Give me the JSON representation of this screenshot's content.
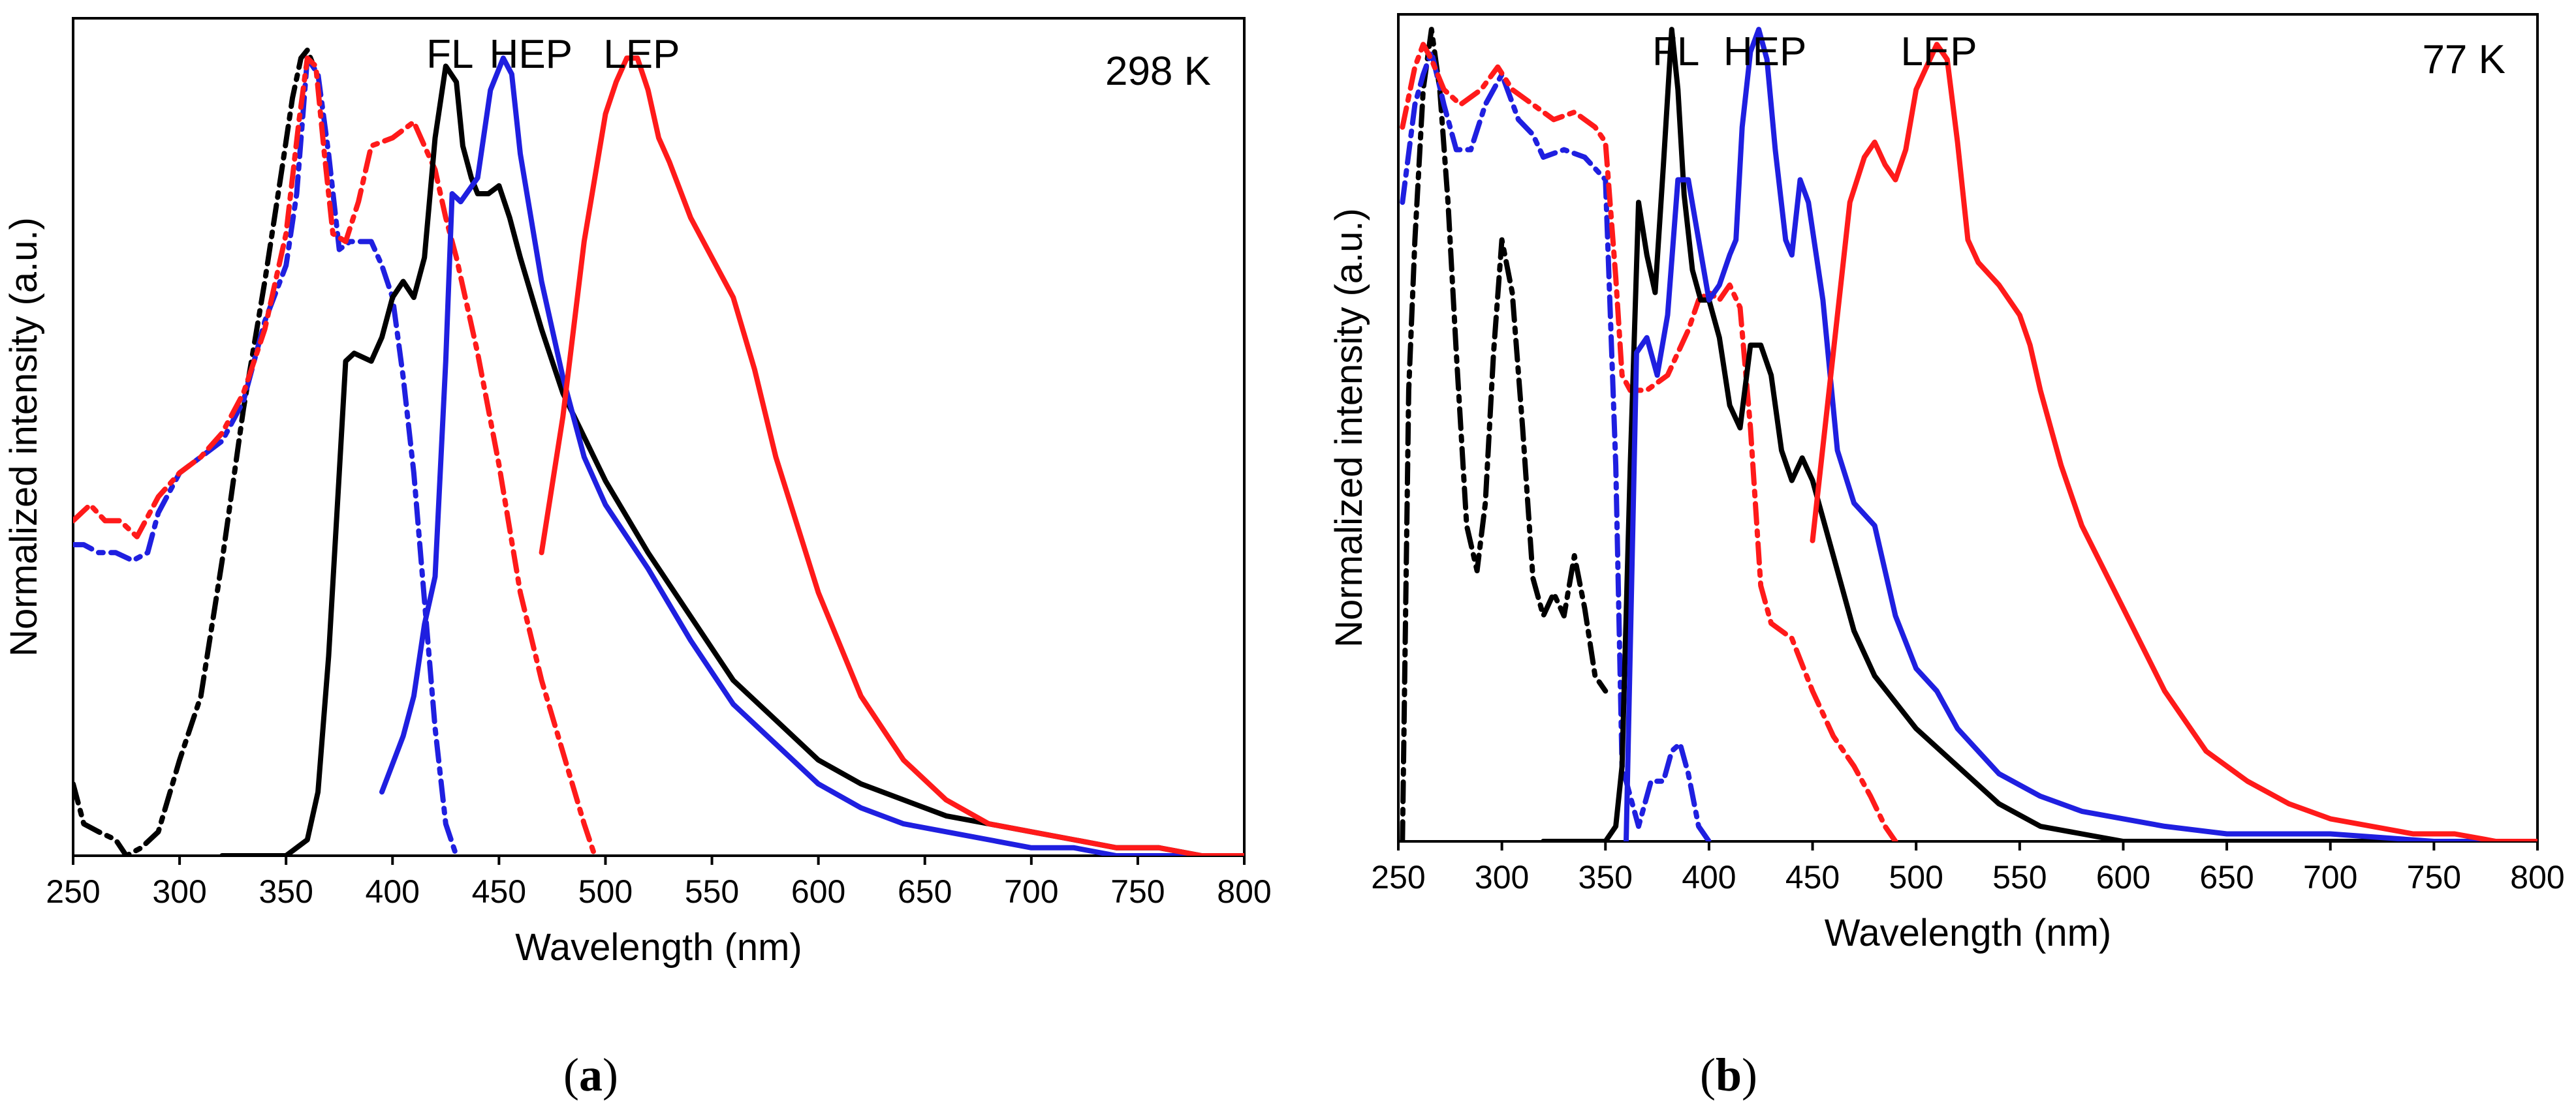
{
  "chart_data": [
    {
      "type": "line",
      "panel_label": "a",
      "temperature_label": "298 K",
      "xlabel": "Wavelength (nm)",
      "ylabel": "Normalized intensity (a.u.)",
      "xlim": [
        250,
        800
      ],
      "ylim": [
        0,
        1.05
      ],
      "xticks": [
        250,
        300,
        350,
        400,
        450,
        500,
        550,
        600,
        650,
        700,
        750,
        800
      ],
      "peak_labels": [
        {
          "text": "FL",
          "x": 427
        },
        {
          "text": "HEP",
          "x": 465
        },
        {
          "text": "LEP",
          "x": 517
        }
      ],
      "series": [
        {
          "name": "black excitation",
          "color": "#000000",
          "style": "dashdot",
          "x": [
            250,
            255,
            262,
            270,
            275,
            282,
            290,
            300,
            310,
            320,
            330,
            340,
            348,
            353,
            357,
            360,
            363
          ],
          "y": [
            0.09,
            0.04,
            0.03,
            0.02,
            0.0,
            0.01,
            0.03,
            0.12,
            0.2,
            0.37,
            0.56,
            0.72,
            0.86,
            0.95,
            1.0,
            1.01,
            0.99
          ]
        },
        {
          "name": "blue excitation",
          "color": "#1f1fe0",
          "style": "dashdot",
          "x": [
            250,
            255,
            262,
            270,
            278,
            285,
            290,
            300,
            310,
            320,
            330,
            340,
            350,
            355,
            360,
            365,
            370,
            375,
            380,
            390,
            395,
            400,
            405,
            410,
            415,
            420,
            425,
            430
          ],
          "y": [
            0.39,
            0.39,
            0.38,
            0.38,
            0.37,
            0.38,
            0.43,
            0.48,
            0.5,
            0.52,
            0.57,
            0.67,
            0.74,
            0.83,
            1.0,
            0.98,
            0.88,
            0.76,
            0.77,
            0.77,
            0.74,
            0.7,
            0.6,
            0.48,
            0.32,
            0.16,
            0.04,
            0.0
          ]
        },
        {
          "name": "red excitation",
          "color": "#ff1a1a",
          "style": "dashdot",
          "x": [
            250,
            258,
            265,
            272,
            280,
            290,
            300,
            310,
            320,
            330,
            340,
            350,
            356,
            360,
            364,
            368,
            372,
            378,
            384,
            390,
            400,
            410,
            415,
            420,
            425,
            430,
            440,
            450,
            460,
            470,
            480,
            490,
            495
          ],
          "y": [
            0.42,
            0.44,
            0.42,
            0.42,
            0.4,
            0.45,
            0.48,
            0.5,
            0.53,
            0.58,
            0.66,
            0.78,
            0.92,
            1.0,
            0.99,
            0.88,
            0.78,
            0.77,
            0.82,
            0.89,
            0.9,
            0.92,
            0.89,
            0.86,
            0.8,
            0.75,
            0.63,
            0.49,
            0.33,
            0.22,
            0.13,
            0.04,
            0.0
          ]
        },
        {
          "name": "FL",
          "color": "#000000",
          "style": "solid",
          "x": [
            320,
            350,
            360,
            365,
            370,
            375,
            378,
            382,
            390,
            395,
            400,
            405,
            410,
            415,
            420,
            425,
            430,
            433,
            437,
            440,
            445,
            450,
            455,
            460,
            470,
            480,
            500,
            520,
            540,
            560,
            580,
            600,
            620,
            640,
            660,
            680,
            700,
            720,
            740,
            760,
            780,
            800
          ],
          "y": [
            0.0,
            0.0,
            0.02,
            0.08,
            0.25,
            0.48,
            0.62,
            0.63,
            0.62,
            0.65,
            0.7,
            0.72,
            0.7,
            0.75,
            0.9,
            0.99,
            0.97,
            0.89,
            0.85,
            0.83,
            0.83,
            0.84,
            0.8,
            0.75,
            0.66,
            0.58,
            0.47,
            0.38,
            0.3,
            0.22,
            0.17,
            0.12,
            0.09,
            0.07,
            0.05,
            0.04,
            0.03,
            0.02,
            0.01,
            0.01,
            0.0,
            0.0
          ]
        },
        {
          "name": "HEP",
          "color": "#1f1fe0",
          "style": "solid",
          "x": [
            395,
            405,
            410,
            415,
            420,
            425,
            428,
            432,
            440,
            446,
            452,
            456,
            460,
            465,
            470,
            480,
            490,
            500,
            520,
            540,
            560,
            580,
            600,
            620,
            640,
            660,
            680,
            700,
            720,
            740,
            760,
            780,
            800
          ],
          "y": [
            0.08,
            0.15,
            0.2,
            0.29,
            0.35,
            0.62,
            0.83,
            0.82,
            0.85,
            0.96,
            1.0,
            0.98,
            0.88,
            0.8,
            0.72,
            0.6,
            0.5,
            0.44,
            0.36,
            0.27,
            0.19,
            0.14,
            0.09,
            0.06,
            0.04,
            0.03,
            0.02,
            0.01,
            0.01,
            0.0,
            0.0,
            0.0,
            0.0
          ]
        },
        {
          "name": "LEP",
          "color": "#ff1a1a",
          "style": "solid",
          "x": [
            470,
            480,
            490,
            500,
            505,
            510,
            515,
            520,
            525,
            530,
            540,
            550,
            560,
            570,
            580,
            600,
            620,
            640,
            660,
            680,
            700,
            720,
            740,
            760,
            780,
            800
          ],
          "y": [
            0.38,
            0.55,
            0.77,
            0.93,
            0.97,
            1.0,
            1.0,
            0.96,
            0.9,
            0.87,
            0.8,
            0.75,
            0.7,
            0.61,
            0.5,
            0.33,
            0.2,
            0.12,
            0.07,
            0.04,
            0.03,
            0.02,
            0.01,
            0.01,
            0.0,
            0.0
          ]
        }
      ]
    },
    {
      "type": "line",
      "panel_label": "b",
      "temperature_label": "77 K",
      "xlabel": "Wavelength (nm)",
      "ylabel": "Normalized intensity (a.u.)",
      "xlim": [
        250,
        800
      ],
      "ylim": [
        0,
        1.1
      ],
      "xticks": [
        250,
        300,
        350,
        400,
        450,
        500,
        550,
        600,
        650,
        700,
        750,
        800
      ],
      "peak_labels": [
        {
          "text": "FL",
          "x": 384
        },
        {
          "text": "HEP",
          "x": 427
        },
        {
          "text": "LEP",
          "x": 511
        }
      ],
      "series": [
        {
          "name": "black excitation",
          "color": "#000000",
          "style": "dashdot",
          "x": [
            252,
            255,
            258,
            262,
            266,
            270,
            274,
            278,
            283,
            288,
            292,
            296,
            300,
            305,
            310,
            315,
            320,
            325,
            330,
            335,
            340,
            345,
            350
          ],
          "y": [
            0.0,
            0.6,
            0.8,
            1.0,
            1.08,
            1.0,
            0.85,
            0.65,
            0.42,
            0.36,
            0.45,
            0.65,
            0.8,
            0.73,
            0.55,
            0.35,
            0.3,
            0.33,
            0.3,
            0.38,
            0.31,
            0.22,
            0.2
          ]
        },
        {
          "name": "blue excitation",
          "color": "#1f1fe0",
          "style": "dashdot",
          "x": [
            252,
            258,
            262,
            266,
            272,
            278,
            285,
            292,
            300,
            308,
            315,
            320,
            330,
            340,
            350,
            355,
            358,
            362,
            366,
            372,
            378,
            382,
            386,
            390,
            395,
            400
          ],
          "y": [
            0.85,
            0.98,
            1.02,
            1.05,
            0.98,
            0.92,
            0.92,
            0.98,
            1.02,
            0.96,
            0.94,
            0.91,
            0.92,
            0.91,
            0.88,
            0.5,
            0.1,
            0.06,
            0.02,
            0.08,
            0.08,
            0.12,
            0.13,
            0.09,
            0.02,
            0.0
          ]
        },
        {
          "name": "red excitation",
          "color": "#ff1a1a",
          "style": "dashdot",
          "x": [
            252,
            258,
            262,
            266,
            272,
            280,
            290,
            298,
            305,
            315,
            325,
            335,
            345,
            350,
            355,
            358,
            362,
            370,
            380,
            390,
            395,
            400,
            405,
            410,
            415,
            420,
            425,
            430,
            440,
            450,
            460,
            470,
            478,
            485,
            490
          ],
          "y": [
            0.95,
            1.03,
            1.06,
            1.04,
            1.0,
            0.98,
            1.0,
            1.03,
            1.0,
            0.98,
            0.96,
            0.97,
            0.95,
            0.93,
            0.75,
            0.62,
            0.6,
            0.6,
            0.62,
            0.68,
            0.72,
            0.73,
            0.72,
            0.74,
            0.71,
            0.55,
            0.34,
            0.29,
            0.27,
            0.2,
            0.14,
            0.1,
            0.06,
            0.02,
            0.0
          ]
        },
        {
          "name": "FL",
          "color": "#000000",
          "style": "solid",
          "x": [
            320,
            350,
            355,
            358,
            362,
            366,
            370,
            374,
            378,
            382,
            385,
            388,
            392,
            396,
            400,
            405,
            410,
            415,
            420,
            425,
            430,
            435,
            440,
            445,
            450,
            460,
            470,
            480,
            500,
            520,
            540,
            560,
            580,
            600,
            620,
            650,
            700,
            750,
            800
          ],
          "y": [
            0.0,
            0.0,
            0.02,
            0.1,
            0.5,
            0.85,
            0.78,
            0.73,
            0.9,
            1.08,
            1.0,
            0.86,
            0.76,
            0.72,
            0.72,
            0.67,
            0.58,
            0.55,
            0.66,
            0.66,
            0.62,
            0.52,
            0.48,
            0.51,
            0.48,
            0.38,
            0.28,
            0.22,
            0.15,
            0.1,
            0.05,
            0.02,
            0.01,
            0.0,
            0.0,
            0.0,
            0.0,
            0.0,
            0.0
          ]
        },
        {
          "name": "HEP",
          "color": "#1f1fe0",
          "style": "solid",
          "x": [
            360,
            365,
            370,
            375,
            380,
            385,
            390,
            395,
            400,
            405,
            410,
            413,
            416,
            420,
            424,
            428,
            432,
            437,
            440,
            444,
            448,
            455,
            462,
            470,
            480,
            490,
            500,
            510,
            520,
            540,
            560,
            580,
            600,
            620,
            650,
            700,
            750,
            800
          ],
          "y": [
            0.0,
            0.65,
            0.67,
            0.62,
            0.7,
            0.88,
            0.88,
            0.8,
            0.72,
            0.74,
            0.78,
            0.8,
            0.95,
            1.05,
            1.08,
            1.04,
            0.92,
            0.8,
            0.78,
            0.88,
            0.85,
            0.72,
            0.52,
            0.45,
            0.42,
            0.3,
            0.23,
            0.2,
            0.15,
            0.09,
            0.06,
            0.04,
            0.03,
            0.02,
            0.01,
            0.01,
            0.0,
            0.0
          ]
        },
        {
          "name": "LEP",
          "color": "#ff1a1a",
          "style": "solid",
          "x": [
            450,
            460,
            468,
            475,
            480,
            485,
            490,
            495,
            500,
            505,
            510,
            515,
            520,
            525,
            530,
            540,
            550,
            555,
            560,
            570,
            580,
            600,
            620,
            640,
            660,
            680,
            700,
            720,
            740,
            760,
            780,
            800
          ],
          "y": [
            0.4,
            0.65,
            0.85,
            0.91,
            0.93,
            0.9,
            0.88,
            0.92,
            1.0,
            1.03,
            1.06,
            1.04,
            0.93,
            0.8,
            0.77,
            0.74,
            0.7,
            0.66,
            0.6,
            0.5,
            0.42,
            0.31,
            0.2,
            0.12,
            0.08,
            0.05,
            0.03,
            0.02,
            0.01,
            0.01,
            0.0,
            0.0
          ]
        }
      ]
    }
  ]
}
